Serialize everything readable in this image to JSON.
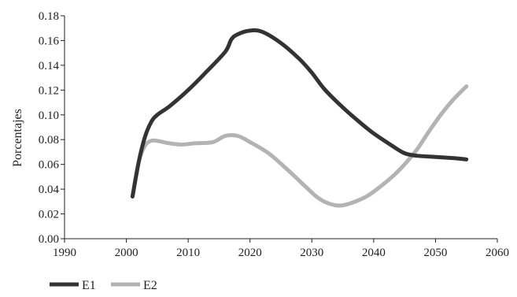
{
  "chart_data": {
    "type": "line",
    "title": "",
    "xlabel": "",
    "ylabel": "Porcentajes",
    "xlim": [
      1990,
      2060
    ],
    "ylim": [
      0,
      0.18
    ],
    "x_ticks": [
      "1990",
      "2000",
      "2010",
      "2020",
      "2030",
      "2040",
      "2050",
      "2060"
    ],
    "y_ticks": [
      "0.00",
      "0.02",
      "0.04",
      "0.06",
      "0.08",
      "0.10",
      "0.12",
      "0.14",
      "0.16",
      "0.18"
    ],
    "grid": false,
    "legend_position": "bottom-left",
    "series": [
      {
        "name": "E1",
        "color": "#333333",
        "x": [
          2001,
          2002,
          2003,
          2004,
          2005,
          2007,
          2010,
          2013,
          2016,
          2017,
          2018,
          2020,
          2022,
          2025,
          2028,
          2030,
          2032,
          2035,
          2038,
          2040,
          2043,
          2045,
          2047,
          2050,
          2053,
          2055
        ],
        "y": [
          0.034,
          0.062,
          0.082,
          0.094,
          0.1,
          0.107,
          0.12,
          0.135,
          0.151,
          0.161,
          0.165,
          0.168,
          0.167,
          0.158,
          0.145,
          0.134,
          0.121,
          0.106,
          0.093,
          0.085,
          0.075,
          0.069,
          0.067,
          0.066,
          0.065,
          0.064
        ]
      },
      {
        "name": "E2",
        "color": "#b3b3b3",
        "x": [
          2001,
          2002,
          2003,
          2004,
          2005,
          2007,
          2009,
          2011,
          2014,
          2016,
          2018,
          2020,
          2023,
          2026,
          2029,
          2031,
          2033,
          2035,
          2038,
          2040,
          2043,
          2045,
          2047,
          2049,
          2051,
          2053,
          2055
        ],
        "y": [
          0.034,
          0.062,
          0.075,
          0.079,
          0.079,
          0.077,
          0.076,
          0.077,
          0.078,
          0.083,
          0.083,
          0.078,
          0.069,
          0.056,
          0.042,
          0.033,
          0.028,
          0.027,
          0.032,
          0.038,
          0.05,
          0.06,
          0.072,
          0.087,
          0.101,
          0.113,
          0.123
        ]
      }
    ]
  }
}
